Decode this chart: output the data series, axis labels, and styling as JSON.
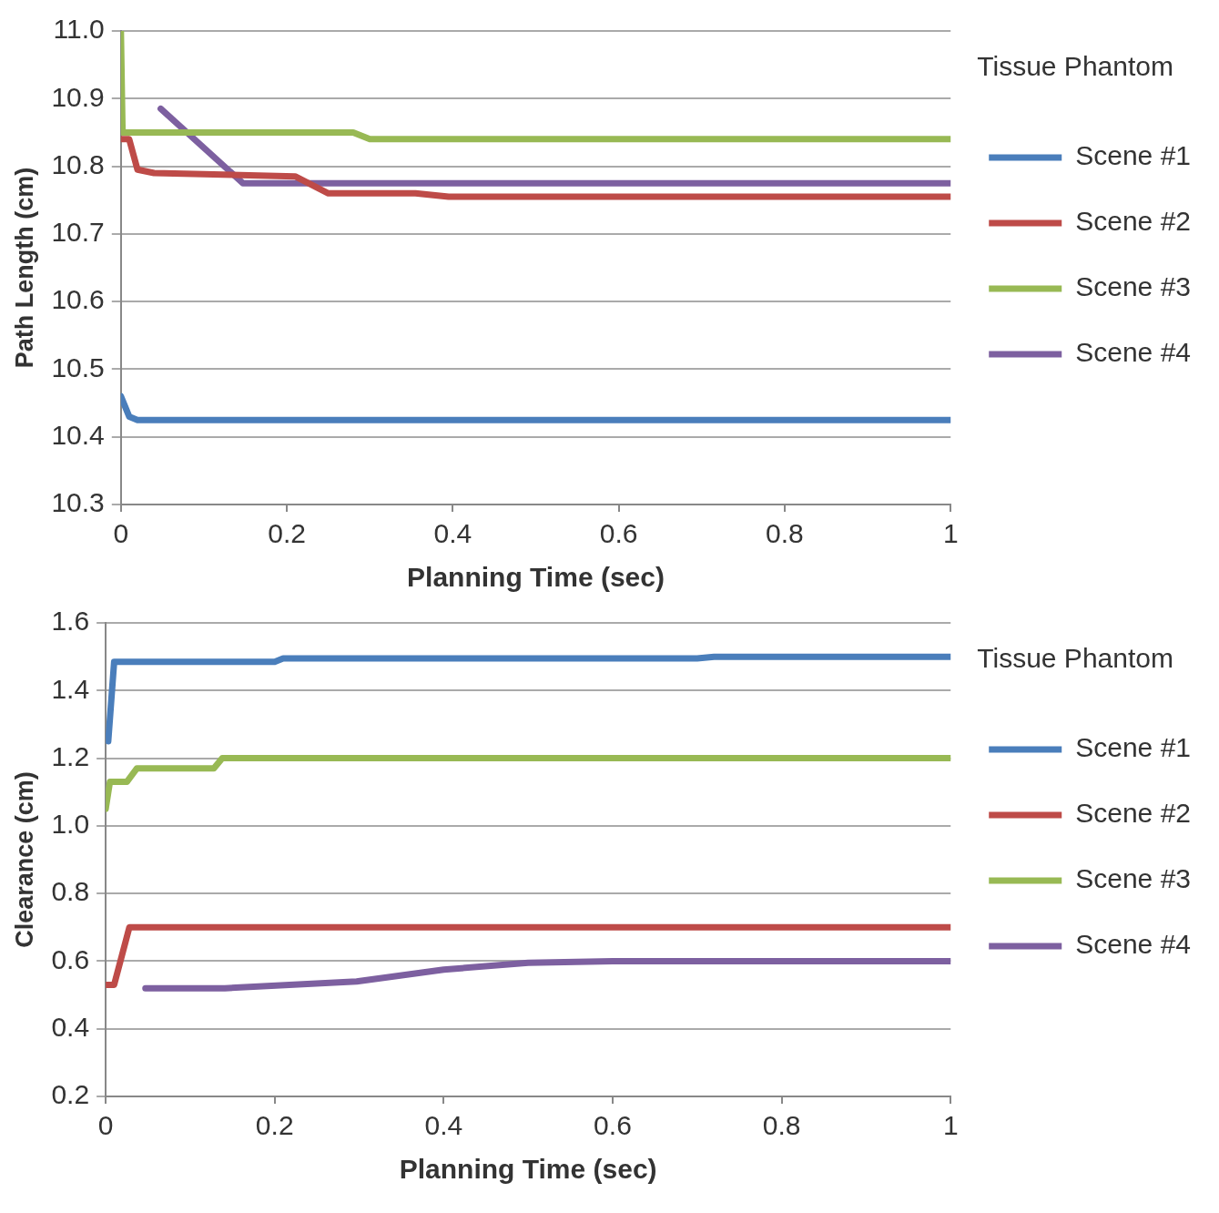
{
  "chart_data": [
    {
      "type": "line",
      "xlabel": "Planning Time (sec)",
      "ylabel": "Path Length (cm)",
      "legend_title": "Tissue Phantom",
      "legend": "right",
      "grid": "y",
      "marker": "none",
      "line_style": "solid",
      "xlim": [
        0,
        1
      ],
      "xticks": [
        0,
        0.2,
        0.4,
        0.6,
        0.8,
        1
      ],
      "ylim": [
        10.3,
        11.0
      ],
      "yticks": [
        {
          "value": 10.3,
          "label": "10.3"
        },
        {
          "value": 10.4,
          "label": "10.4"
        },
        {
          "value": 10.5,
          "label": "10.5"
        },
        {
          "value": 10.6,
          "label": "10.6"
        },
        {
          "value": 10.7,
          "label": "10.7"
        },
        {
          "value": 10.8,
          "label": "10.8"
        },
        {
          "value": 10.9,
          "label": "10.9"
        },
        {
          "value": 11.0,
          "label": "11.0"
        }
      ],
      "series": [
        {
          "name": "Scene #1",
          "color": "#4a7ebb",
          "x": [
            0,
            0.01,
            0.02,
            1
          ],
          "values": [
            10.46,
            10.43,
            10.425,
            10.425
          ]
        },
        {
          "name": "Scene #2",
          "color": "#be4b48",
          "x": [
            0,
            0.01,
            0.02,
            0.04,
            0.21,
            0.25,
            0.355,
            0.395,
            1
          ],
          "values": [
            10.84,
            10.84,
            10.795,
            10.79,
            10.785,
            10.76,
            10.76,
            10.755,
            10.755
          ]
        },
        {
          "name": "Scene #3",
          "color": "#98b954",
          "x": [
            0,
            0.002,
            0.28,
            0.3,
            1
          ],
          "values": [
            11.0,
            10.85,
            10.85,
            10.84,
            10.84
          ]
        },
        {
          "name": "Scene #4",
          "color": "#7d60a0",
          "x": [
            0.048,
            0.147,
            1
          ],
          "values": [
            10.885,
            10.775,
            10.775
          ]
        }
      ]
    },
    {
      "type": "line",
      "xlabel": "Planning Time (sec)",
      "ylabel": "Clearance (cm)",
      "legend_title": "Tissue Phantom",
      "legend": "right",
      "grid": "y",
      "marker": "none",
      "line_style": "solid",
      "xlim": [
        0,
        1
      ],
      "xticks": [
        0,
        0.2,
        0.4,
        0.6,
        0.8,
        1
      ],
      "ylim": [
        0.2,
        1.6
      ],
      "yticks": [
        {
          "value": 0.2,
          "label": "0.2"
        },
        {
          "value": 0.4,
          "label": "0.4"
        },
        {
          "value": 0.6,
          "label": "0.6"
        },
        {
          "value": 0.8,
          "label": "0.8"
        },
        {
          "value": 1.0,
          "label": "1.0"
        },
        {
          "value": 1.2,
          "label": "1.2"
        },
        {
          "value": 1.4,
          "label": "1.4"
        },
        {
          "value": 1.6,
          "label": "1.6"
        }
      ],
      "series": [
        {
          "name": "Scene #1",
          "color": "#4a7ebb",
          "x": [
            0.003,
            0.01,
            0.2,
            0.21,
            0.7,
            0.72,
            1
          ],
          "values": [
            1.25,
            1.485,
            1.485,
            1.495,
            1.495,
            1.5,
            1.5
          ]
        },
        {
          "name": "Scene #2",
          "color": "#be4b48",
          "x": [
            0,
            0.01,
            0.028,
            1
          ],
          "values": [
            0.53,
            0.53,
            0.7,
            0.7
          ]
        },
        {
          "name": "Scene #3",
          "color": "#98b954",
          "x": [
            0,
            0.005,
            0.025,
            0.037,
            0.128,
            0.138,
            1
          ],
          "values": [
            1.05,
            1.13,
            1.13,
            1.17,
            1.17,
            1.2,
            1.2
          ]
        },
        {
          "name": "Scene #4",
          "color": "#7d60a0",
          "x": [
            0.047,
            0.141,
            0.297,
            0.4,
            0.5,
            0.6,
            1
          ],
          "values": [
            0.52,
            0.52,
            0.54,
            0.575,
            0.595,
            0.6,
            0.6
          ]
        }
      ]
    }
  ]
}
